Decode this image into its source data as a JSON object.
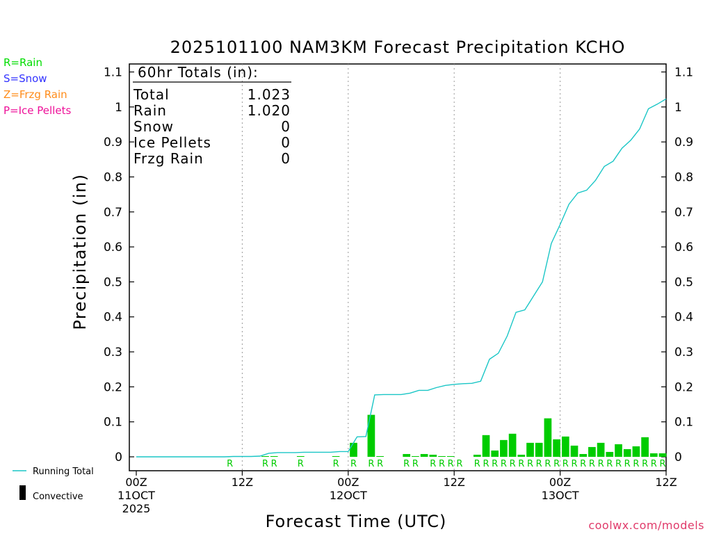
{
  "chart_data": {
    "type": "bar",
    "title": "2025101100 NAM3KM Forecast Precipitation KCHO",
    "xlabel": "Forecast Time (UTC)",
    "ylabel": "Precipitation (in)",
    "ylim": [
      0,
      1.1
    ],
    "xlim_hours": [
      0,
      60
    ],
    "yticks": [
      0,
      0.1,
      0.2,
      0.3,
      0.4,
      0.5,
      0.6,
      0.7,
      0.8,
      0.9,
      1,
      1.1
    ],
    "yticklabels": [
      "0",
      "0.1",
      "0.2",
      "0.3",
      "0.4",
      "0.5",
      "0.6",
      "0.7",
      "0.8",
      "0.9",
      "1",
      "1.1"
    ],
    "xticks": [
      {
        "hour": 0,
        "lines": [
          "00Z",
          "11OCT",
          "2025"
        ]
      },
      {
        "hour": 12,
        "lines": [
          "12Z"
        ]
      },
      {
        "hour": 24,
        "lines": [
          "00Z",
          "12OCT"
        ]
      },
      {
        "hour": 36,
        "lines": [
          "12Z"
        ]
      },
      {
        "hour": 48,
        "lines": [
          "00Z",
          "13OCT"
        ]
      },
      {
        "hour": 60,
        "lines": [
          "12Z"
        ]
      }
    ],
    "gridlines_hours": [
      12,
      24,
      36,
      48
    ],
    "type_legend": [
      {
        "label": "R=Rain",
        "color": "#00dd00"
      },
      {
        "label": "S=Snow",
        "color": "#3333ff"
      },
      {
        "label": "Z=Frzg Rain",
        "color": "#ff8c1a"
      },
      {
        "label": "P=Ice Pellets",
        "color": "#ee1199"
      }
    ],
    "series_legend": [
      {
        "label": "Running Total",
        "kind": "line",
        "color": "#1ac6c6"
      },
      {
        "label": "Convective",
        "kind": "bar",
        "color": "#000000"
      }
    ],
    "totals_box": {
      "header": "60hr Totals (in):",
      "rows": [
        {
          "label": "Total",
          "value": "1.023"
        },
        {
          "label": "Rain",
          "value": "1.020"
        },
        {
          "label": "Snow",
          "value": "0"
        },
        {
          "label": "Ice Pellets",
          "value": "0"
        },
        {
          "label": "Frzg Rain",
          "value": "0"
        }
      ]
    },
    "bar_color": "#00cc00",
    "line_color": "#1ac6c6",
    "series": [
      {
        "name": "Hourly Precipitation",
        "points": [
          [
            12,
            0.001
          ],
          [
            15,
            0.002
          ],
          [
            16,
            0.001
          ],
          [
            19,
            0.001
          ],
          [
            23,
            0.001
          ],
          [
            25,
            0.04
          ],
          [
            27,
            0.12
          ],
          [
            28,
            0.001
          ],
          [
            31,
            0.008
          ],
          [
            32,
            0.002
          ],
          [
            33,
            0.008
          ],
          [
            34,
            0.006
          ],
          [
            35,
            0.002
          ],
          [
            36,
            0.002
          ],
          [
            39,
            0.006
          ],
          [
            40,
            0.062
          ],
          [
            41,
            0.018
          ],
          [
            42,
            0.048
          ],
          [
            43,
            0.066
          ],
          [
            44,
            0.006
          ],
          [
            45,
            0.04
          ],
          [
            46,
            0.04
          ],
          [
            47,
            0.11
          ],
          [
            48,
            0.05
          ],
          [
            49,
            0.058
          ],
          [
            50,
            0.032
          ],
          [
            51,
            0.008
          ],
          [
            52,
            0.028
          ],
          [
            53,
            0.04
          ],
          [
            54,
            0.014
          ],
          [
            55,
            0.036
          ],
          [
            56,
            0.022
          ],
          [
            57,
            0.03
          ],
          [
            58,
            0.056
          ],
          [
            59,
            0.01
          ],
          [
            60,
            0.01
          ]
        ]
      },
      {
        "name": "Running Total",
        "points": [
          [
            0,
            0
          ],
          [
            10,
            0
          ],
          [
            11,
            0.001
          ],
          [
            12,
            0.001
          ],
          [
            13,
            0.001
          ],
          [
            14,
            0.002
          ],
          [
            15,
            0.01
          ],
          [
            16,
            0.012
          ],
          [
            17,
            0.012
          ],
          [
            18,
            0.012
          ],
          [
            19,
            0.013
          ],
          [
            20,
            0.013
          ],
          [
            21,
            0.013
          ],
          [
            22,
            0.013
          ],
          [
            23,
            0.015
          ],
          [
            24,
            0.015
          ],
          [
            25,
            0.057
          ],
          [
            26,
            0.058
          ],
          [
            27,
            0.177
          ],
          [
            28,
            0.178
          ],
          [
            29,
            0.178
          ],
          [
            30,
            0.178
          ],
          [
            31,
            0.182
          ],
          [
            32,
            0.19
          ],
          [
            33,
            0.19
          ],
          [
            34,
            0.198
          ],
          [
            35,
            0.204
          ],
          [
            36,
            0.207
          ],
          [
            37,
            0.209
          ],
          [
            38,
            0.21
          ],
          [
            39,
            0.216
          ],
          [
            40,
            0.279
          ],
          [
            41,
            0.296
          ],
          [
            42,
            0.345
          ],
          [
            43,
            0.413
          ],
          [
            44,
            0.42
          ],
          [
            45,
            0.46
          ],
          [
            46,
            0.5
          ],
          [
            47,
            0.61
          ],
          [
            48,
            0.664
          ],
          [
            49,
            0.722
          ],
          [
            50,
            0.754
          ],
          [
            51,
            0.762
          ],
          [
            52,
            0.79
          ],
          [
            53,
            0.83
          ],
          [
            54,
            0.845
          ],
          [
            55,
            0.882
          ],
          [
            56,
            0.905
          ],
          [
            57,
            0.937
          ],
          [
            58,
            0.995
          ],
          [
            59,
            1.008
          ],
          [
            60,
            1.023
          ]
        ]
      }
    ],
    "precip_type_marks": {
      "label": "R",
      "hours": [
        11,
        15,
        16,
        19,
        23,
        25,
        27,
        28,
        31,
        32,
        34,
        35,
        36,
        37,
        39,
        40,
        41,
        42,
        43,
        44,
        45,
        46,
        47,
        48,
        49,
        50,
        51,
        52,
        53,
        54,
        55,
        56,
        57,
        58,
        59,
        60
      ]
    },
    "credit": "coolwx.com/models"
  }
}
